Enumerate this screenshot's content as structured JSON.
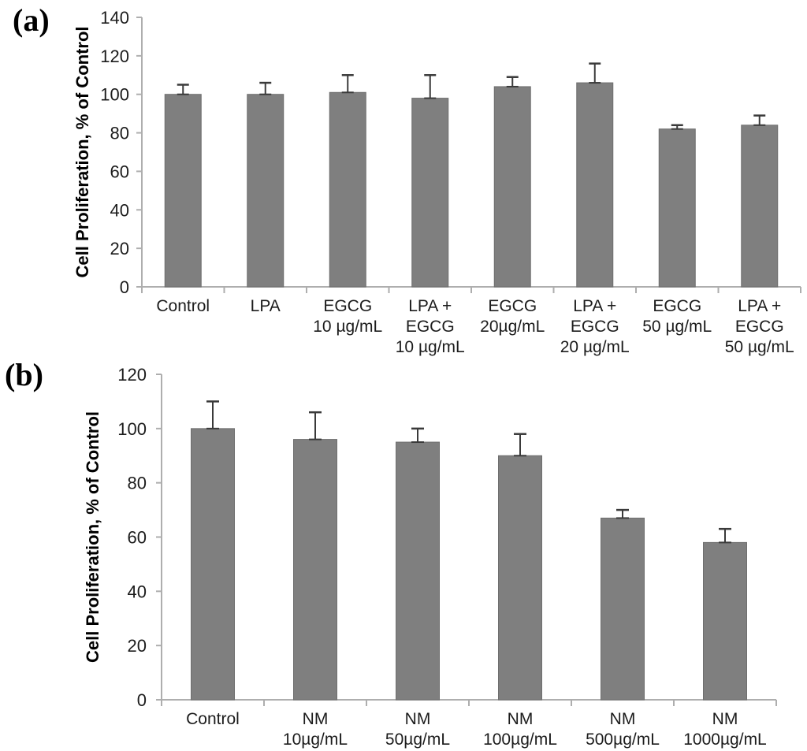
{
  "page": {
    "background": "#ffffff"
  },
  "chart_data": [
    {
      "type": "bar",
      "panel_label": "(a)",
      "title": "",
      "xlabel": "",
      "ylabel": "Cell Proliferation, % of Control",
      "ylim": [
        0,
        140
      ],
      "yticks": [
        0,
        20,
        40,
        60,
        80,
        100,
        120,
        140
      ],
      "grid": false,
      "legend": "none",
      "categories": [
        "Control",
        "LPA",
        "EGCG\n10 µg/mL",
        "LPA +\nEGCG\n10 µg/mL",
        "EGCG\n20µg/mL",
        "LPA +\nEGCG\n20 µg/mL",
        "EGCG\n50 µg/mL",
        "LPA +\nEGCG\n50 µg/mL"
      ],
      "values": [
        100,
        100,
        101,
        98,
        104,
        106,
        82,
        84
      ],
      "errors_plus": [
        5,
        6,
        9,
        12,
        5,
        10,
        2,
        5
      ],
      "bar_color": "#7f7f7f",
      "bar_border_color": "#6e6e6e",
      "error_color": "#3a3a3a",
      "axis_color": "#aeaeae",
      "text_color": "#1c1c1c"
    },
    {
      "type": "bar",
      "panel_label": "(b)",
      "title": "",
      "xlabel": "",
      "ylabel": "Cell Proliferation, % of Control",
      "ylim": [
        0,
        120
      ],
      "yticks": [
        0,
        20,
        40,
        60,
        80,
        100,
        120
      ],
      "grid": false,
      "legend": "none",
      "categories": [
        "Control",
        "NM\n10µg/mL",
        "NM\n50µg/mL",
        "NM\n100µg/mL",
        "NM\n500µg/mL",
        "NM\n1000µg/mL"
      ],
      "values": [
        100,
        96,
        95,
        90,
        67,
        58
      ],
      "errors_plus": [
        10,
        10,
        5,
        8,
        3,
        5
      ],
      "bar_color": "#7f7f7f",
      "bar_border_color": "#6e6e6e",
      "error_color": "#3a3a3a",
      "axis_color": "#aeaeae",
      "text_color": "#1c1c1c"
    }
  ]
}
